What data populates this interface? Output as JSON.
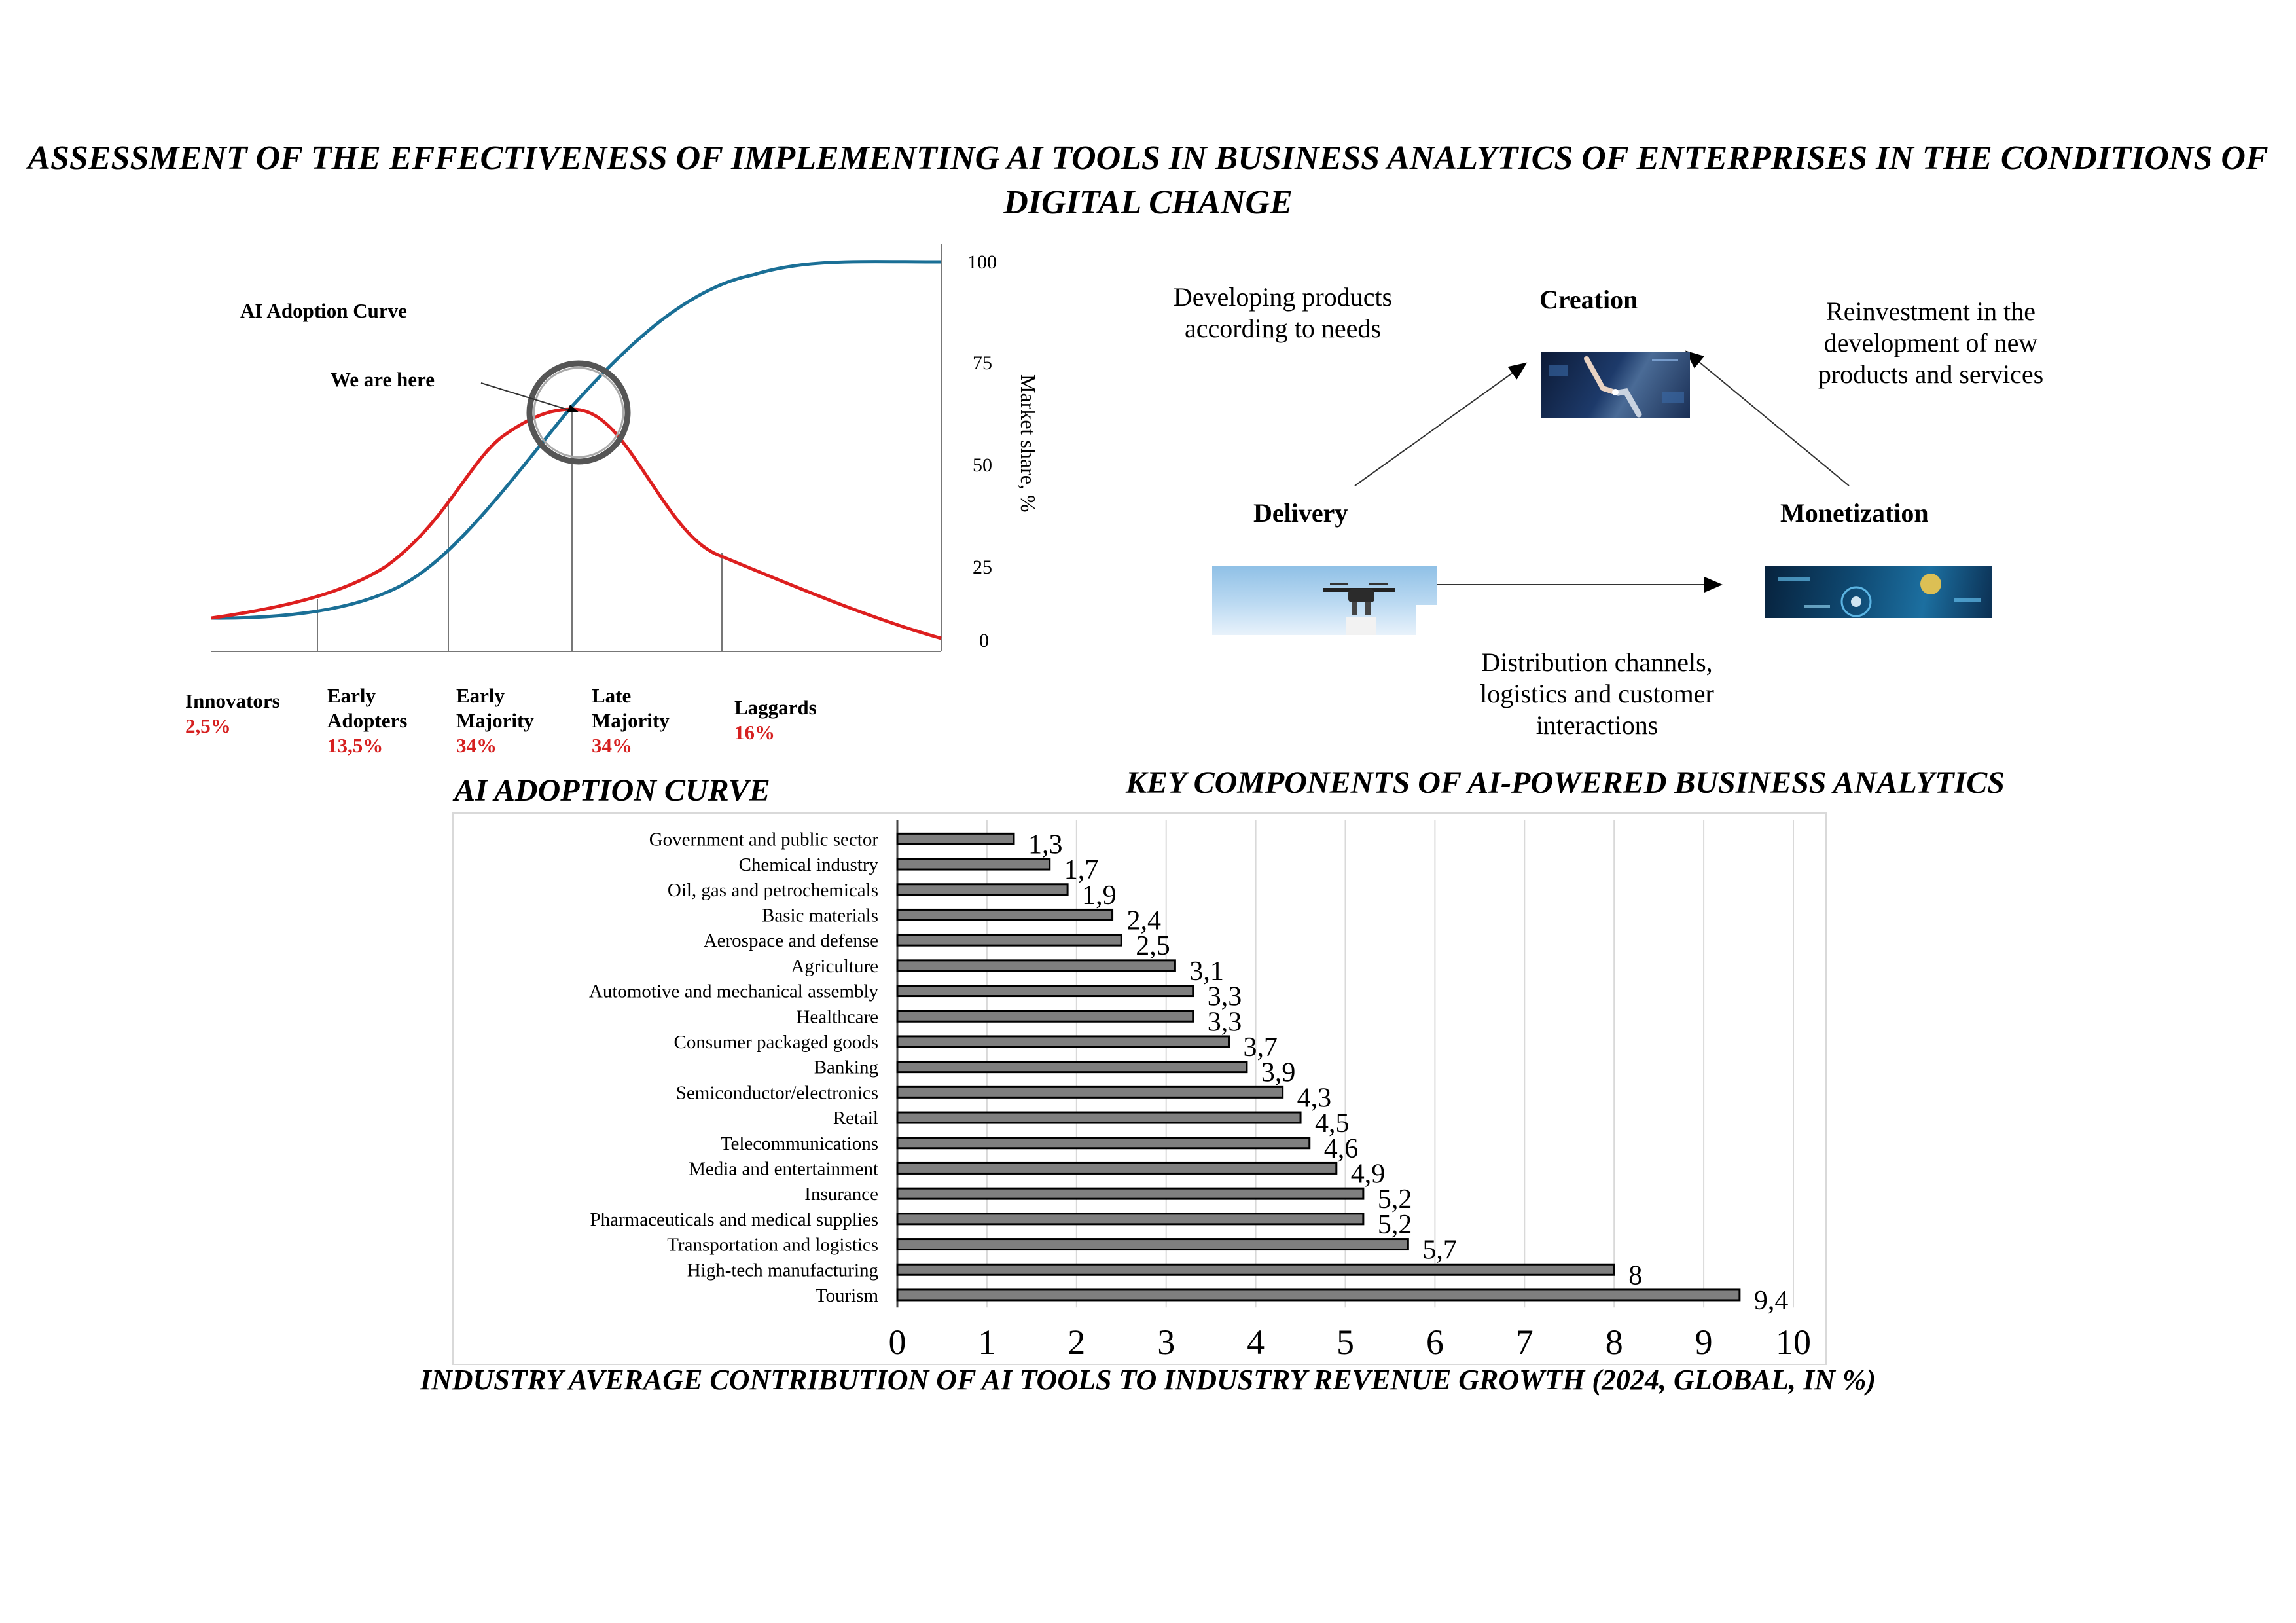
{
  "title": "ASSESSMENT OF THE EFFECTIVENESS OF IMPLEMENTING AI TOOLS IN BUSINESS ANALYTICS OF ENTERPRISES IN THE CONDITIONS OF DIGITAL CHANGE",
  "adoption_panel": {
    "caption": "AI ADOPTION CURVE",
    "inner_title": "AI Adoption Curve",
    "marker_label": "We are here",
    "axis_label": "Market share, %",
    "ticks": [
      "100",
      "75",
      "50",
      "25",
      "0"
    ],
    "segments": [
      {
        "label": "Innovators",
        "pct": "2,5%"
      },
      {
        "label": "Early Adopters",
        "pct": "13,5%"
      },
      {
        "label": "Early Majority",
        "pct": "34%"
      },
      {
        "label": "Late Majority",
        "pct": "34%"
      },
      {
        "label": "Laggards",
        "pct": "16%"
      }
    ],
    "colors": {
      "cumulative": "#1a6f96",
      "adoption": "#dd1f1f"
    }
  },
  "components_panel": {
    "caption": "KEY COMPONENTS OF AI-POWERED BUSINESS ANALYTICS",
    "creation": "Creation",
    "delivery": "Delivery",
    "monetization": "Monetization",
    "note_developing": "Developing products according to needs",
    "note_reinvestment": "Reinvestment in the development of new products and services",
    "note_distribution": "Distribution channels, logistics and customer interactions"
  },
  "chart_data": {
    "type": "bar",
    "orientation": "horizontal",
    "title": "INDUSTRY AVERAGE CONTRIBUTION OF AI TOOLS TO INDUSTRY REVENUE GROWTH (2024, GLOBAL, IN %)",
    "categories": [
      "Government and public sector",
      "Chemical industry",
      "Oil, gas and petrochemicals",
      "Basic materials",
      "Aerospace and defense",
      "Agriculture",
      "Automotive and mechanical assembly",
      "Healthcare",
      "Consumer packaged goods",
      "Banking",
      "Semiconductor/electronics",
      "Retail",
      "Telecommunications",
      "Media and entertainment",
      "Insurance",
      "Pharmaceuticals and medical supplies",
      "Transportation and logistics",
      "High-tech manufacturing",
      "Tourism"
    ],
    "values": [
      1.3,
      1.7,
      1.9,
      2.4,
      2.5,
      3.1,
      3.3,
      3.3,
      3.7,
      3.9,
      4.3,
      4.5,
      4.6,
      4.9,
      5.2,
      5.2,
      5.7,
      8,
      9.4
    ],
    "value_labels": [
      "1,3",
      "1,7",
      "1,9",
      "2,4",
      "2,5",
      "3,1",
      "3,3",
      "3,3",
      "3,7",
      "3,9",
      "4,3",
      "4,5",
      "4,6",
      "4,9",
      "5,2",
      "5,2",
      "5,7",
      "8",
      "9,4"
    ],
    "xlim": [
      0,
      10
    ],
    "xticks": [
      "0",
      "1",
      "2",
      "3",
      "4",
      "5",
      "6",
      "7",
      "8",
      "9",
      "10"
    ],
    "grid": true,
    "bar_color": "#7f7f7f"
  }
}
